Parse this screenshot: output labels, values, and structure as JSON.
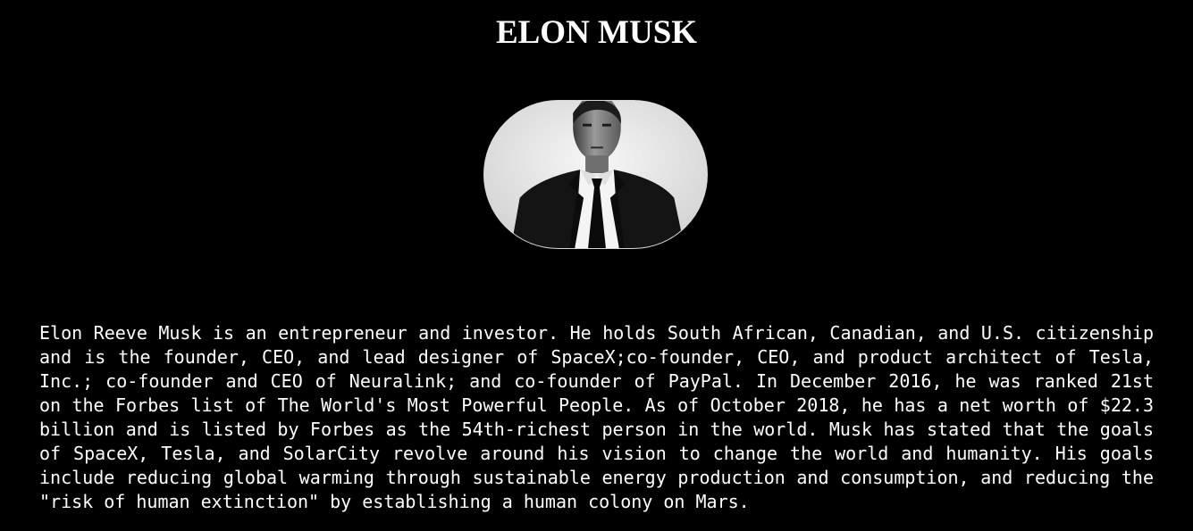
{
  "page": {
    "title": "ELON MUSK",
    "portrait_icon": "person-portrait-photo",
    "bio": "Elon Reeve Musk is an entrepreneur and investor. He holds South African, Canadian, and U.S. citizenship and is the founder, CEO, and lead designer of SpaceX;co-founder, CEO, and product architect of Tesla, Inc.; co-founder and CEO of Neuralink; and co-founder of PayPal. In December 2016, he was ranked 21st on the Forbes list of The World's Most Powerful People. As of October 2018, he has a net worth of $22.3 billion and is listed by Forbes as the 54th-richest person in the world. Musk has stated that the goals of SpaceX, Tesla, and SolarCity revolve around his vision to change the world and humanity. His goals include reducing global warming through sustainable energy production and consumption, and reducing the \"risk of human extinction\" by establishing a human colony on Mars."
  },
  "colors": {
    "background": "#000000",
    "text": "#ffffff",
    "portrait_border": "#d8d8d8"
  }
}
